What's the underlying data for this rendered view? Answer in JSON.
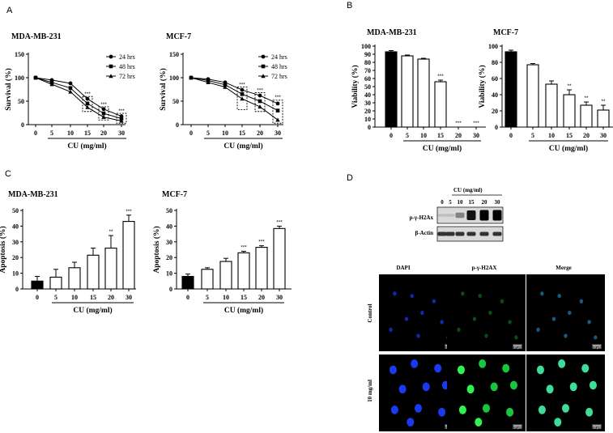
{
  "panel_letters": [
    "A",
    "B",
    "C",
    "D"
  ],
  "chart_data": [
    {
      "id": "A-MDA",
      "type": "line",
      "title": "MDA-MB-231",
      "xlabel": "CU (mg/ml)",
      "ylabel": "Survival (%)",
      "x": [
        0,
        5,
        10,
        15,
        20,
        30
      ],
      "ylim": [
        0,
        150
      ],
      "yticks": [
        0,
        50,
        100,
        150
      ],
      "legend_position": "top-right",
      "series": [
        {
          "name": "24 hrs",
          "marker": "circle",
          "values": [
            100,
            95,
            88,
            55,
            33,
            18
          ]
        },
        {
          "name": "48 hrs",
          "marker": "square",
          "values": [
            100,
            90,
            78,
            45,
            24,
            13
          ]
        },
        {
          "name": "72 hrs",
          "marker": "triangle",
          "values": [
            100,
            86,
            70,
            37,
            16,
            8
          ]
        }
      ],
      "annotations": [
        {
          "x": 15,
          "text": "***",
          "y": 62
        },
        {
          "x": 20,
          "text": "***",
          "y": 40
        },
        {
          "x": 30,
          "text": "***",
          "y": 26
        }
      ],
      "boxes": [
        {
          "x": 15,
          "y_low": 28,
          "y_high": 60
        },
        {
          "x": 20,
          "y_low": 10,
          "y_high": 38
        },
        {
          "x": 30,
          "y_low": 3,
          "y_high": 24
        }
      ]
    },
    {
      "id": "A-MCF",
      "type": "line",
      "title": "MCF-7",
      "xlabel": "CU (mg/ml)",
      "ylabel": "Survival (%)",
      "x": [
        0,
        5,
        10,
        15,
        20,
        30
      ],
      "ylim": [
        0,
        150
      ],
      "yticks": [
        0,
        50,
        100,
        150
      ],
      "legend_position": "top-right",
      "series": [
        {
          "name": "24 hrs",
          "marker": "circle",
          "values": [
            100,
            97,
            90,
            74,
            62,
            45
          ]
        },
        {
          "name": "48 hrs",
          "marker": "square",
          "values": [
            100,
            94,
            85,
            65,
            50,
            30
          ]
        },
        {
          "name": "72 hrs",
          "marker": "triangle",
          "values": [
            100,
            90,
            80,
            55,
            38,
            10
          ]
        }
      ],
      "annotations": [
        {
          "x": 15,
          "text": "***",
          "y": 82
        },
        {
          "x": 20,
          "text": "***",
          "y": 70
        },
        {
          "x": 30,
          "text": "***",
          "y": 55
        }
      ],
      "boxes": [
        {
          "x": 15,
          "y_low": 32,
          "y_high": 80
        },
        {
          "x": 20,
          "y_low": 28,
          "y_high": 68
        },
        {
          "x": 30,
          "y_low": 3,
          "y_high": 52
        }
      ]
    },
    {
      "id": "B-MDA",
      "type": "bar",
      "title": "MDA-MB-231",
      "xlabel": "CU (mg/ml)",
      "ylabel": "Viability (%)",
      "categories": [
        "0",
        "5",
        "10",
        "15",
        "20",
        "30"
      ],
      "values": [
        93,
        88,
        84,
        56,
        0,
        0
      ],
      "errors": [
        1.5,
        1,
        1,
        2,
        0,
        0
      ],
      "fill": [
        "#000000",
        "#ffffff",
        "#ffffff",
        "#ffffff",
        "#ffffff",
        "#ffffff"
      ],
      "labels": [
        "",
        "",
        "",
        "***",
        "***",
        "***"
      ],
      "ylim": [
        0,
        100
      ],
      "yticks": [
        0,
        10,
        20,
        30,
        40,
        50,
        60,
        70,
        80,
        90,
        100
      ]
    },
    {
      "id": "B-MCF",
      "type": "bar",
      "title": "MCF-7",
      "xlabel": "CU (mg/ml)",
      "ylabel": "Viability (%)",
      "categories": [
        "0",
        "5",
        "10",
        "15",
        "20",
        "30"
      ],
      "values": [
        93,
        77,
        53,
        40,
        27,
        21
      ],
      "errors": [
        2,
        1.5,
        4,
        6,
        4,
        6
      ],
      "fill": [
        "#000000",
        "#ffffff",
        "#ffffff",
        "#ffffff",
        "#ffffff",
        "#ffffff"
      ],
      "labels": [
        "",
        "",
        "",
        "**",
        "**",
        "**"
      ],
      "ylim": [
        0,
        100
      ],
      "yticks": [
        0,
        20,
        40,
        60,
        80,
        100
      ]
    },
    {
      "id": "C-MDA",
      "type": "bar",
      "title": "MDA-MB-231",
      "xlabel": "CU (mg/ml)",
      "ylabel": "Apoptosis (%)",
      "categories": [
        "0",
        "5",
        "10",
        "15",
        "20",
        "30"
      ],
      "values": [
        5,
        7.5,
        13.5,
        21.5,
        26,
        43
      ],
      "errors": [
        3,
        5,
        3.5,
        4.5,
        8,
        4
      ],
      "fill": [
        "#000000",
        "#ffffff",
        "#ffffff",
        "#ffffff",
        "#ffffff",
        "#ffffff"
      ],
      "labels": [
        "",
        "",
        "",
        "",
        "**",
        "***"
      ],
      "ylim": [
        0,
        50
      ],
      "yticks": [
        0,
        10,
        20,
        30,
        40,
        50
      ]
    },
    {
      "id": "C-MCF",
      "type": "bar",
      "title": "MCF-7",
      "xlabel": "CU (mg/ml)",
      "ylabel": "Apoptosis (%)",
      "categories": [
        "0",
        "5",
        "10",
        "15",
        "20",
        "30"
      ],
      "values": [
        8,
        12.5,
        17.5,
        23,
        26.5,
        38.5
      ],
      "errors": [
        1.5,
        1,
        2,
        1,
        1,
        1.5
      ],
      "fill": [
        "#000000",
        "#ffffff",
        "#ffffff",
        "#ffffff",
        "#ffffff",
        "#ffffff"
      ],
      "labels": [
        "",
        "",
        "",
        "***",
        "***",
        "***"
      ],
      "ylim": [
        0,
        50
      ],
      "yticks": [
        0,
        10,
        20,
        30,
        40,
        50
      ]
    }
  ],
  "western": {
    "header": "CU (mg/ml)",
    "lanes": [
      "0",
      "5",
      "10",
      "15",
      "20",
      "30"
    ],
    "rows": [
      {
        "label": "p-γ-H2Ax",
        "intensity": [
          0.05,
          0.05,
          0.35,
          0.9,
          1.0,
          1.0
        ]
      },
      {
        "label": "β-Actin",
        "intensity": [
          0.75,
          0.75,
          0.75,
          0.75,
          0.75,
          0.75
        ]
      }
    ]
  },
  "microscopy": {
    "columns": [
      "DAPI",
      "p-γ-H2AX",
      "Merge"
    ],
    "rows": [
      "Control",
      "10 mg/ml"
    ],
    "scale_text": "10 μm"
  }
}
